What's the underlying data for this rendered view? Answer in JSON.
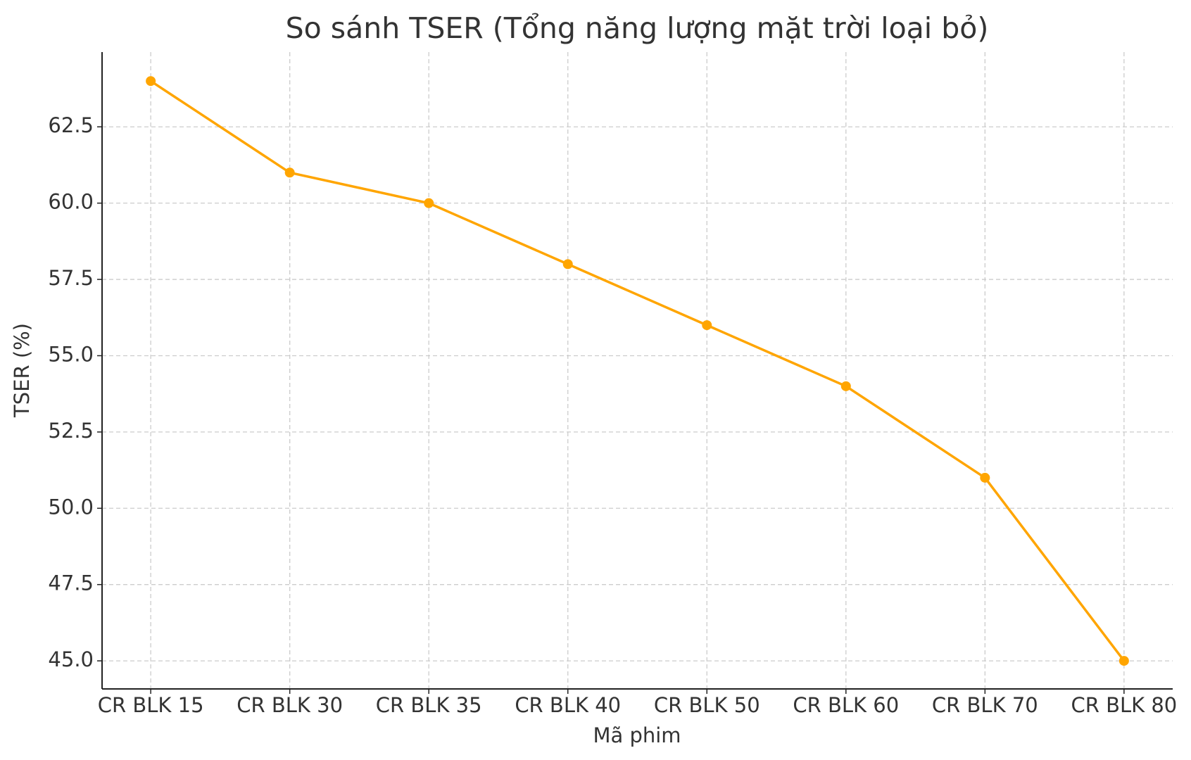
{
  "chart_data": {
    "type": "line",
    "title": "So sánh TSER (Tổng năng lượng mặt trời loại bỏ)",
    "x_label": "Mã phim",
    "y_label": "TSER (%)",
    "categories": [
      "CR BLK 15",
      "CR BLK 30",
      "CR BLK 35",
      "CR BLK 40",
      "CR BLK 50",
      "CR BLK 60",
      "CR BLK 70",
      "CR BLK 80"
    ],
    "series": [
      {
        "name": "TSER",
        "color": "#ffa500",
        "values": [
          64,
          61,
          60,
          58,
          56,
          54,
          51,
          45
        ]
      }
    ],
    "ylim": [
      44.08,
      64.95
    ],
    "yticks": [
      {
        "value": 45,
        "label": "45.0"
      },
      47.5,
      {
        "value": 50,
        "label": "50.0"
      },
      52.5,
      {
        "value": 55,
        "label": "55.0"
      },
      57.5,
      {
        "value": 60,
        "label": "60.0"
      },
      62.5
    ],
    "grid": true
  }
}
